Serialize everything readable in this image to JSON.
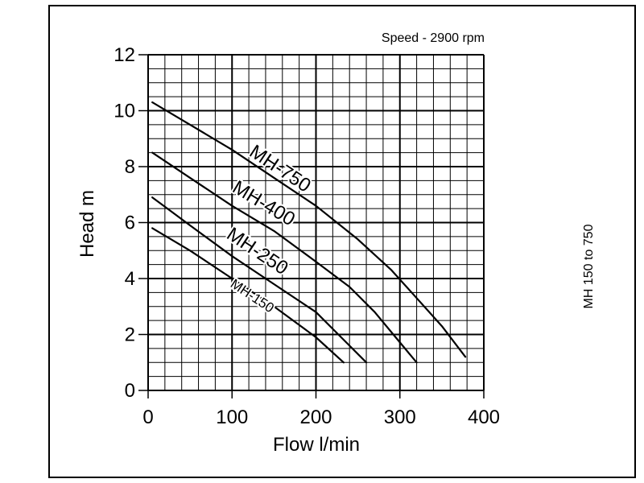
{
  "chart_data": {
    "type": "line",
    "xlabel": "Flow l/min",
    "ylabel": "Head m",
    "xlim": [
      0,
      400
    ],
    "ylim": [
      0,
      12
    ],
    "x_ticks": [
      "0",
      "100",
      "200",
      "300",
      "400"
    ],
    "y_ticks": [
      "0",
      "2",
      "4",
      "6",
      "8",
      "10",
      "12"
    ],
    "grid": true,
    "annotations": {
      "speed": "Speed - 2900 rpm",
      "side_note": "MH 150 to 750"
    },
    "series": [
      {
        "name": "MH-750",
        "x": [
          5,
          50,
          100,
          150,
          200,
          250,
          290,
          320,
          350,
          378
        ],
        "y": [
          10.3,
          9.5,
          8.6,
          7.6,
          6.6,
          5.4,
          4.3,
          3.3,
          2.3,
          1.2
        ]
      },
      {
        "name": "MH-400",
        "x": [
          5,
          50,
          100,
          150,
          200,
          240,
          270,
          295,
          320
        ],
        "y": [
          8.5,
          7.6,
          6.6,
          5.7,
          4.6,
          3.7,
          2.8,
          1.9,
          1.0
        ]
      },
      {
        "name": "MH-250",
        "x": [
          5,
          50,
          100,
          150,
          200,
          230,
          260
        ],
        "y": [
          6.9,
          5.9,
          4.8,
          3.8,
          2.8,
          1.9,
          1.0
        ]
      },
      {
        "name": "MH-150",
        "x": [
          5,
          50,
          100,
          150,
          200,
          233
        ],
        "y": [
          5.8,
          5.0,
          4.0,
          3.0,
          1.9,
          1.0
        ]
      }
    ]
  }
}
